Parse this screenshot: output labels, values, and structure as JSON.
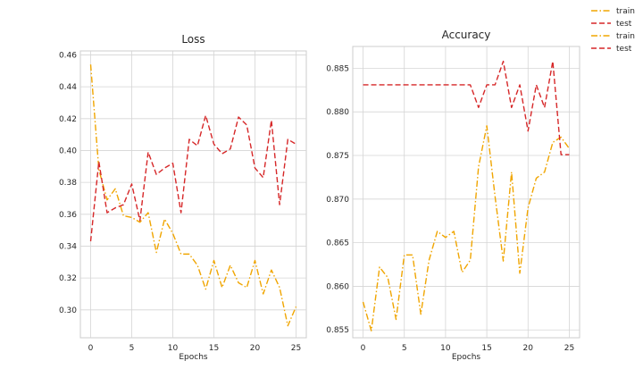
{
  "chart_data": [
    {
      "type": "line",
      "title": "Loss",
      "xlabel": "Epochs",
      "ylabel": "",
      "xlim": [
        -1.25,
        26.25
      ],
      "ylim": [
        0.2825,
        0.4625
      ],
      "xticks": [
        0,
        5,
        10,
        15,
        20,
        25
      ],
      "xtick_labels": [
        "0",
        "5",
        "10",
        "15",
        "20",
        "25"
      ],
      "yticks": [
        0.3,
        0.32,
        0.34,
        0.36,
        0.38,
        0.4,
        0.42,
        0.44,
        0.46
      ],
      "ytick_labels": [
        "0.30",
        "0.32",
        "0.34",
        "0.36",
        "0.38",
        "0.40",
        "0.42",
        "0.44",
        "0.46"
      ],
      "grid": true,
      "x": [
        0,
        1,
        2,
        3,
        4,
        5,
        6,
        7,
        8,
        9,
        10,
        11,
        12,
        13,
        14,
        15,
        16,
        17,
        18,
        19,
        20,
        21,
        22,
        23,
        24,
        25
      ],
      "series": [
        {
          "name": "train",
          "color": "#f0a500",
          "style": "dashdot",
          "values": [
            0.454,
            0.388,
            0.369,
            0.376,
            0.359,
            0.358,
            0.355,
            0.361,
            0.336,
            0.357,
            0.348,
            0.335,
            0.335,
            0.328,
            0.313,
            0.331,
            0.314,
            0.328,
            0.317,
            0.314,
            0.331,
            0.31,
            0.325,
            0.314,
            0.29,
            0.302
          ]
        },
        {
          "name": "test",
          "color": "#d62728",
          "style": "dashed",
          "values": [
            0.343,
            0.393,
            0.361,
            0.364,
            0.366,
            0.379,
            0.356,
            0.399,
            0.385,
            0.389,
            0.392,
            0.361,
            0.407,
            0.403,
            0.422,
            0.404,
            0.398,
            0.401,
            0.421,
            0.416,
            0.389,
            0.383,
            0.419,
            0.366,
            0.407,
            0.404
          ]
        }
      ]
    },
    {
      "type": "line",
      "title": "Accuracy",
      "xlabel": "Epochs",
      "ylabel": "",
      "xlim": [
        -1.25,
        26.25
      ],
      "ylim": [
        0.8541,
        0.8875
      ],
      "xticks": [
        0,
        5,
        10,
        15,
        20,
        25
      ],
      "xtick_labels": [
        "0",
        "5",
        "10",
        "15",
        "20",
        "25"
      ],
      "yticks": [
        0.855,
        0.86,
        0.865,
        0.87,
        0.875,
        0.88,
        0.885
      ],
      "ytick_labels": [
        "0.855",
        "0.860",
        "0.865",
        "0.870",
        "0.875",
        "0.880",
        "0.885"
      ],
      "grid": true,
      "x": [
        0,
        1,
        2,
        3,
        4,
        5,
        6,
        7,
        8,
        9,
        10,
        11,
        12,
        13,
        14,
        15,
        16,
        17,
        18,
        19,
        20,
        21,
        22,
        23,
        24,
        25
      ],
      "series": [
        {
          "name": "train",
          "color": "#f0a500",
          "style": "dashdot",
          "values": [
            0.8582,
            0.8549,
            0.8622,
            0.861,
            0.8562,
            0.8636,
            0.8636,
            0.8568,
            0.863,
            0.8663,
            0.8656,
            0.8663,
            0.8616,
            0.863,
            0.8737,
            0.8784,
            0.8703,
            0.8629,
            0.8731,
            0.8615,
            0.869,
            0.8724,
            0.8731,
            0.8765,
            0.8771,
            0.8758
          ]
        },
        {
          "name": "test",
          "color": "#d62728",
          "style": "dashed",
          "values": [
            0.8831,
            0.8831,
            0.8831,
            0.8831,
            0.8831,
            0.8831,
            0.8831,
            0.8831,
            0.8831,
            0.8831,
            0.8831,
            0.8831,
            0.8831,
            0.8831,
            0.8805,
            0.8831,
            0.8831,
            0.8858,
            0.8805,
            0.8831,
            0.8778,
            0.8831,
            0.8805,
            0.8858,
            0.8751,
            0.8751
          ]
        }
      ]
    }
  ],
  "legend": {
    "placement": "top-right",
    "entries": [
      {
        "label": "train",
        "color": "#f0a500",
        "style": "dashdot"
      },
      {
        "label": "test",
        "color": "#d62728",
        "style": "dashed"
      },
      {
        "label": "train",
        "color": "#f0a500",
        "style": "dashdot"
      },
      {
        "label": "test",
        "color": "#d62728",
        "style": "dashed"
      }
    ]
  }
}
